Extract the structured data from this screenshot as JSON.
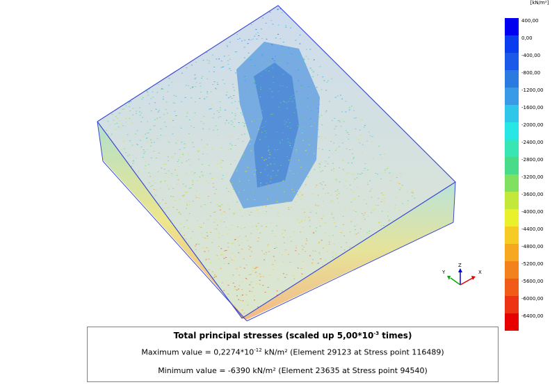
{
  "legend": {
    "unit": "[kN/m²]",
    "ticks": [
      "400,00",
      "0,00",
      "-400,00",
      "-800,00",
      "-1200,00",
      "-1600,00",
      "-2000,00",
      "-2400,00",
      "-2800,00",
      "-3200,00",
      "-3600,00",
      "-4000,00",
      "-4400,00",
      "-4800,00",
      "-5200,00",
      "-5600,00",
      "-6000,00",
      "-6400,00"
    ],
    "colors": [
      "#0000f0",
      "#0a3cf0",
      "#1a5ae8",
      "#2a7ae0",
      "#3a9ae6",
      "#30c6ea",
      "#28e6e6",
      "#38e6b4",
      "#48dc8a",
      "#80e060",
      "#c2e83a",
      "#eaf02c",
      "#f6cc24",
      "#f6a820",
      "#f4821c",
      "#f05c18",
      "#ec3414",
      "#e80000"
    ]
  },
  "axes": {
    "y": "Y",
    "z": "Z",
    "x": "X"
  },
  "caption": {
    "title_prefix": "Total principal stresses (scaled up 5,00*10",
    "title_exp": "-3",
    "title_suffix": " times)",
    "max_prefix": "Maximum value = 0,2274*10",
    "max_exp": "-12",
    "max_suffix": " kN/m² (Element 29123 at Stress point 116489)",
    "min_text": "Minimum value = -6390 kN/m² (Element 23635 at Stress point 94540)"
  }
}
